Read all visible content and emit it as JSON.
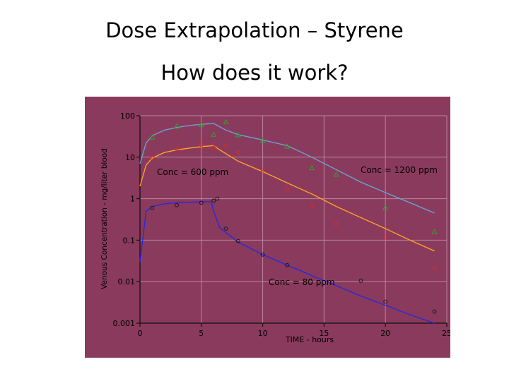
{
  "slide": {
    "title": "Dose Extrapolation – Styrene",
    "subtitle": "How does it work?"
  },
  "colors": {
    "panel": "#8a3a5c",
    "grid": "#b7889c",
    "axis": "#111111",
    "series_80": "#2828e0",
    "series_600": "#ffa028",
    "series_1200": "#6aa0d0",
    "obs_80": "#1a1a1a",
    "obs_600": "#e02828",
    "obs_1200": "#30a030"
  },
  "chart_data": {
    "type": "line",
    "xlabel": "TIME - hours",
    "ylabel": "Venous Concentration - mg/liter blood",
    "xlim": [
      0,
      25
    ],
    "ylim": [
      0.001,
      100
    ],
    "yscale": "log",
    "grid": true,
    "x_ticks": [
      0,
      5,
      10,
      15,
      20,
      25
    ],
    "x_tick_labels": [
      "0",
      "5",
      "10",
      "15",
      "20",
      "25"
    ],
    "y_ticks": [
      100,
      10,
      1,
      0.1,
      0.01,
      0.001
    ],
    "y_tick_labels": [
      "100",
      "10",
      "1",
      "0.1",
      "0.01",
      "0.001"
    ],
    "series": [
      {
        "name": "Conc = 80 ppm",
        "color_key": "series_80",
        "line": {
          "x": [
            0,
            0.5,
            1,
            2,
            3,
            4,
            5,
            5.8,
            6,
            6.5,
            8,
            10,
            12,
            14,
            16,
            18,
            20,
            22,
            24
          ],
          "y": [
            0.03,
            0.5,
            0.65,
            0.75,
            0.8,
            0.82,
            0.84,
            0.85,
            0.5,
            0.2,
            0.09,
            0.045,
            0.025,
            0.014,
            0.008,
            0.0045,
            0.0027,
            0.0016,
            0.001
          ]
        },
        "points": {
          "x": [
            1,
            3,
            5,
            6,
            6.3,
            7,
            8,
            10,
            12,
            18,
            20,
            24
          ],
          "y": [
            0.6,
            0.7,
            0.8,
            0.9,
            1.0,
            0.19,
            0.095,
            0.045,
            0.025,
            0.0105,
            0.0033,
            0.0019
          ]
        }
      },
      {
        "name": "Conc = 600 ppm",
        "color_key": "series_600",
        "line": {
          "x": [
            0,
            0.5,
            1,
            2,
            3,
            4,
            5,
            6,
            6.5,
            8,
            10,
            12,
            14,
            16,
            18,
            20,
            22,
            24
          ],
          "y": [
            2.0,
            6.5,
            9.5,
            13,
            15,
            16.5,
            18,
            19,
            15,
            8,
            4.5,
            2.4,
            1.3,
            0.65,
            0.35,
            0.19,
            0.1,
            0.055
          ]
        },
        "points": {
          "x": [
            1,
            3,
            5,
            6,
            7,
            8,
            10,
            12,
            14,
            16,
            20,
            24
          ],
          "y": [
            9.5,
            16,
            20,
            17,
            19,
            13,
            5,
            1.7,
            0.7,
            0.25,
            0.12,
            0.021
          ]
        }
      },
      {
        "name": "Conc = 1200 ppm",
        "color_key": "series_1200",
        "line": {
          "x": [
            0,
            0.5,
            1,
            2,
            3,
            4,
            5,
            6,
            7,
            8,
            10,
            12,
            14,
            16,
            18,
            20,
            22,
            24
          ],
          "y": [
            7,
            22,
            33,
            45,
            52,
            58,
            62,
            65,
            45,
            35,
            26,
            19,
            10,
            5,
            2.5,
            1.4,
            0.8,
            0.45
          ]
        },
        "points": {
          "x": [
            1,
            3,
            5,
            6,
            7,
            8,
            10,
            12,
            14,
            16,
            20,
            24
          ],
          "y": [
            30,
            55,
            60,
            35,
            70,
            34,
            25,
            18,
            5.5,
            3.8,
            0.6,
            0.16
          ]
        }
      }
    ],
    "annotations": [
      {
        "text": "Conc = 600 ppm",
        "series": "Conc = 600 ppm"
      },
      {
        "text": "Conc = 1200 ppm",
        "series": "Conc = 1200 ppm"
      },
      {
        "text": "Conc = 80 ppm",
        "series": "Conc = 80 ppm"
      }
    ]
  }
}
